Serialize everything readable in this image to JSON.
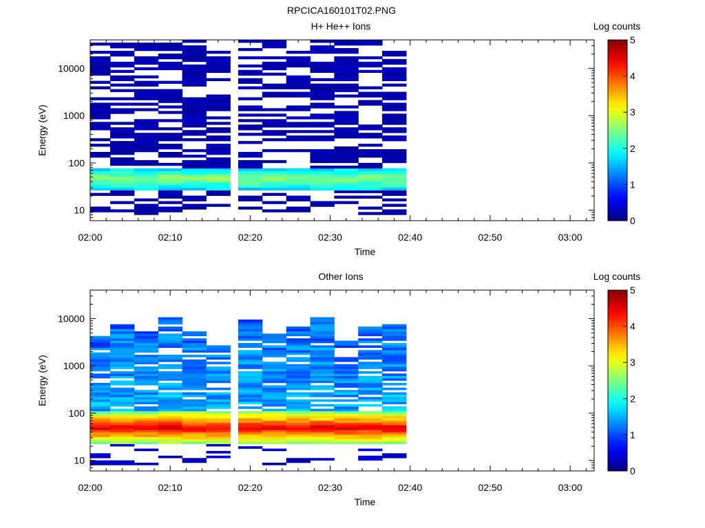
{
  "figure": {
    "title": "RPCICA160101T02.PNG",
    "time_ticks": [
      "02:00",
      "02:10",
      "02:20",
      "02:30",
      "02:40",
      "02:50",
      "03:00"
    ]
  },
  "chart_data": [
    {
      "type": "heatmap",
      "title": "H+ He++ Ions",
      "xlabel": "Time",
      "ylabel": "Energy (eV)",
      "y_scale": "log",
      "ylim": [
        6,
        40000
      ],
      "xlim": [
        "02:00",
        "03:03"
      ],
      "x_ticks": [
        "02:00",
        "02:10",
        "02:20",
        "02:30",
        "02:40",
        "02:50",
        "03:00"
      ],
      "y_ticks": [
        "10",
        "100",
        "1000",
        "10000"
      ],
      "colorbar": {
        "label": "Log counts",
        "range": [
          0,
          5
        ],
        "ticks": [
          "0",
          "1",
          "2",
          "3",
          "4",
          "5"
        ],
        "colormap": "jet"
      },
      "grid": false,
      "data_time_bins": [
        "02:01",
        "02:04",
        "02:07",
        "02:10",
        "02:13",
        "02:16",
        "02:20",
        "02:23",
        "02:26",
        "02:29",
        "02:32",
        "02:35",
        "02:38"
      ],
      "energy_range_eV": [
        8,
        40000
      ],
      "description_values": {
        "peak_band_energy_eV": [
          30,
          70
        ],
        "peak_log_counts": 2.6,
        "typical_high_energy_log_counts": 0.3
      }
    },
    {
      "type": "heatmap",
      "title": "Other Ions",
      "xlabel": "Time",
      "ylabel": "Energy (eV)",
      "y_scale": "log",
      "ylim": [
        6,
        40000
      ],
      "xlim": [
        "02:00",
        "03:03"
      ],
      "x_ticks": [
        "02:00",
        "02:10",
        "02:20",
        "02:30",
        "02:40",
        "02:50",
        "03:00"
      ],
      "y_ticks": [
        "10",
        "100",
        "1000",
        "10000"
      ],
      "colorbar": {
        "label": "Log counts",
        "range": [
          0,
          5
        ],
        "ticks": [
          "0",
          "1",
          "2",
          "3",
          "4",
          "5"
        ],
        "colormap": "jet"
      },
      "grid": false,
      "data_time_bins": [
        "02:01",
        "02:04",
        "02:07",
        "02:10",
        "02:13",
        "02:16",
        "02:20",
        "02:23",
        "02:26",
        "02:29",
        "02:32",
        "02:35",
        "02:38"
      ],
      "energy_range_eV": [
        8,
        12000
      ],
      "description_values": {
        "peak_band_energy_eV": [
          35,
          70
        ],
        "peak_log_counts": 4.5,
        "typical_high_energy_log_counts": 1.2
      }
    }
  ]
}
